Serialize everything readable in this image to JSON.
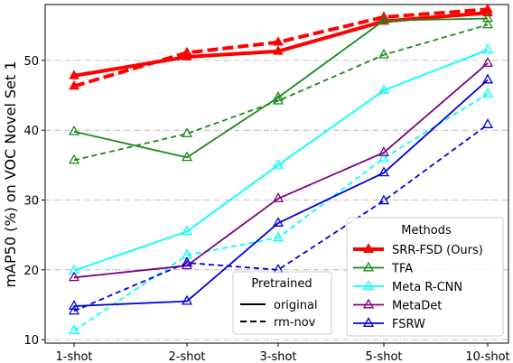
{
  "chart_data": {
    "type": "line",
    "categories": [
      "1-shot",
      "2-shot",
      "3-shot",
      "5-shot",
      "10-shot"
    ],
    "ylabel": "mAP50 (%) on VOC Novel Set 1",
    "xlabel": "",
    "ylim": [
      9.5,
      58
    ],
    "yticks": [
      10,
      20,
      30,
      40,
      50
    ],
    "grid": "y-dashdot",
    "series": [
      {
        "method": "SRR-FSD (Ours)",
        "variant": "original",
        "color": "#ff0000",
        "values": [
          47.8,
          50.5,
          51.3,
          55.6,
          56.8
        ],
        "bold": true
      },
      {
        "method": "SRR-FSD (Ours)",
        "variant": "rm-nov",
        "color": "#ff0000",
        "values": [
          46.3,
          51.1,
          52.6,
          56.2,
          57.3
        ],
        "bold": true
      },
      {
        "method": "TFA",
        "variant": "original",
        "color": "#1a8a1a",
        "values": [
          39.8,
          36.1,
          44.7,
          55.7,
          56.0
        ]
      },
      {
        "method": "TFA",
        "variant": "rm-nov",
        "color": "#1a8a1a",
        "values": [
          35.7,
          39.5,
          44.2,
          50.8,
          55.1
        ]
      },
      {
        "method": "Meta R-CNN",
        "variant": "original",
        "color": "#00ffff",
        "values": [
          19.9,
          25.5,
          35.0,
          45.7,
          51.5
        ]
      },
      {
        "method": "Meta R-CNN",
        "variant": "rm-nov",
        "color": "#00ffff",
        "values": [
          11.3,
          22.1,
          24.6,
          36.0,
          45.2
        ]
      },
      {
        "method": "MetaDet",
        "variant": "original",
        "color": "#800080",
        "values": [
          18.9,
          20.6,
          30.2,
          36.8,
          49.6
        ]
      },
      {
        "method": "FSRW",
        "variant": "original",
        "color": "#0000dd",
        "values": [
          14.8,
          15.5,
          26.7,
          33.9,
          47.2
        ]
      },
      {
        "method": "FSRW",
        "variant": "rm-nov",
        "color": "#0000dd",
        "values": [
          14.1,
          21.0,
          20.0,
          29.9,
          40.8
        ]
      }
    ],
    "legend_methods": {
      "title": "Methods",
      "placement": "bottom-right",
      "items": [
        {
          "label": "SRR-FSD (Ours)",
          "color": "#ff0000",
          "bold": true
        },
        {
          "label": "TFA",
          "color": "#1a8a1a"
        },
        {
          "label": "Meta R-CNN",
          "color": "#00ffff"
        },
        {
          "label": "MetaDet",
          "color": "#800080"
        },
        {
          "label": "FSRW",
          "color": "#0000dd"
        }
      ]
    },
    "legend_pretrained": {
      "title": "Pretrained",
      "placement": "bottom-center",
      "items": [
        {
          "label": "original",
          "style": "solid"
        },
        {
          "label": "rm-nov",
          "style": "dashed"
        }
      ]
    }
  }
}
